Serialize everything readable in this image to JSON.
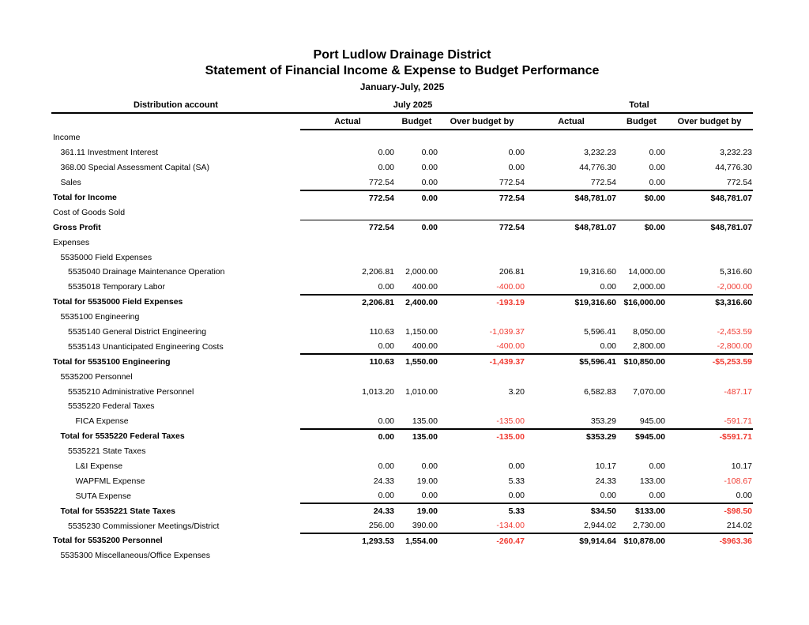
{
  "report": {
    "title": "Port Ludlow Drainage District",
    "subtitle": "Statement of Financial Income & Expense to Budget Performance",
    "period": "January-July, 2025",
    "account_column_header": "Distribution account",
    "column_groups": [
      {
        "label": "July 2025",
        "columns": [
          "Actual",
          "Budget",
          "Over budget by"
        ]
      },
      {
        "label": "Total",
        "columns": [
          "Actual",
          "Budget",
          "Over budget by"
        ]
      }
    ],
    "rows": [
      {
        "label": "Income",
        "indent": 0,
        "bold": false,
        "rule_top": false,
        "rule_bottom": false,
        "values": [
          "",
          "",
          "",
          "",
          "",
          ""
        ]
      },
      {
        "label": "361.11 Investment Interest",
        "indent": 1,
        "bold": false,
        "rule_top": false,
        "rule_bottom": false,
        "values": [
          "0.00",
          "0.00",
          "0.00",
          "3,232.23",
          "0.00",
          "3,232.23"
        ]
      },
      {
        "label": "368.00 Special Assessment Capital (SA)",
        "indent": 1,
        "bold": false,
        "rule_top": false,
        "rule_bottom": false,
        "values": [
          "0.00",
          "0.00",
          "0.00",
          "44,776.30",
          "0.00",
          "44,776.30"
        ]
      },
      {
        "label": "Sales",
        "indent": 1,
        "bold": false,
        "rule_top": false,
        "rule_bottom": true,
        "values": [
          "772.54",
          "0.00",
          "772.54",
          "772.54",
          "0.00",
          "772.54"
        ]
      },
      {
        "label": "Total for Income",
        "indent": 0,
        "bold": true,
        "rule_top": true,
        "rule_bottom": false,
        "values": [
          "772.54",
          "0.00",
          "772.54",
          "$48,781.07",
          "$0.00",
          "$48,781.07"
        ]
      },
      {
        "label": "Cost of Goods Sold",
        "indent": 0,
        "bold": false,
        "rule_top": false,
        "rule_bottom": false,
        "values": [
          "",
          "",
          "",
          "",
          "",
          ""
        ]
      },
      {
        "label": "Gross Profit",
        "indent": 0,
        "bold": true,
        "rule_top": true,
        "rule_bottom": false,
        "values": [
          "772.54",
          "0.00",
          "772.54",
          "$48,781.07",
          "$0.00",
          "$48,781.07"
        ]
      },
      {
        "label": "Expenses",
        "indent": 0,
        "bold": false,
        "rule_top": false,
        "rule_bottom": false,
        "values": [
          "",
          "",
          "",
          "",
          "",
          ""
        ]
      },
      {
        "label": "5535000 Field Expenses",
        "indent": 1,
        "bold": false,
        "rule_top": false,
        "rule_bottom": false,
        "values": [
          "",
          "",
          "",
          "",
          "",
          ""
        ]
      },
      {
        "label": "5535040 Drainage Maintenance Operation",
        "indent": 2,
        "bold": false,
        "rule_top": false,
        "rule_bottom": false,
        "values": [
          "2,206.81",
          "2,000.00",
          "206.81",
          "19,316.60",
          "14,000.00",
          "5,316.60"
        ]
      },
      {
        "label": "5535018 Temporary Labor",
        "indent": 2,
        "bold": false,
        "rule_top": false,
        "rule_bottom": true,
        "values": [
          "0.00",
          "400.00",
          "-400.00",
          "0.00",
          "2,000.00",
          "-2,000.00"
        ]
      },
      {
        "label": "Total for 5535000 Field Expenses",
        "indent": 0,
        "bold": true,
        "rule_top": true,
        "rule_bottom": false,
        "values": [
          "2,206.81",
          "2,400.00",
          "-193.19",
          "$19,316.60",
          "$16,000.00",
          "$3,316.60"
        ]
      },
      {
        "label": "5535100 Engineering",
        "indent": 1,
        "bold": false,
        "rule_top": false,
        "rule_bottom": false,
        "values": [
          "",
          "",
          "",
          "",
          "",
          ""
        ]
      },
      {
        "label": "5535140 General District Engineering",
        "indent": 2,
        "bold": false,
        "rule_top": false,
        "rule_bottom": false,
        "values": [
          "110.63",
          "1,150.00",
          "-1,039.37",
          "5,596.41",
          "8,050.00",
          "-2,453.59"
        ]
      },
      {
        "label": "5535143 Unanticipated Engineering Costs",
        "indent": 2,
        "bold": false,
        "rule_top": false,
        "rule_bottom": true,
        "values": [
          "0.00",
          "400.00",
          "-400.00",
          "0.00",
          "2,800.00",
          "-2,800.00"
        ]
      },
      {
        "label": "Total for 5535100 Engineering",
        "indent": 0,
        "bold": true,
        "rule_top": true,
        "rule_bottom": false,
        "values": [
          "110.63",
          "1,550.00",
          "-1,439.37",
          "$5,596.41",
          "$10,850.00",
          "-$5,253.59"
        ]
      },
      {
        "label": "5535200 Personnel",
        "indent": 1,
        "bold": false,
        "rule_top": false,
        "rule_bottom": false,
        "values": [
          "",
          "",
          "",
          "",
          "",
          ""
        ]
      },
      {
        "label": "5535210 Administrative Personnel",
        "indent": 2,
        "bold": false,
        "rule_top": false,
        "rule_bottom": false,
        "values": [
          "1,013.20",
          "1,010.00",
          "3.20",
          "6,582.83",
          "7,070.00",
          "-487.17"
        ]
      },
      {
        "label": "5535220 Federal Taxes",
        "indent": 2,
        "bold": false,
        "rule_top": false,
        "rule_bottom": false,
        "values": [
          "",
          "",
          "",
          "",
          "",
          ""
        ]
      },
      {
        "label": "FICA Expense",
        "indent": 3,
        "bold": false,
        "rule_top": false,
        "rule_bottom": true,
        "values": [
          "0.00",
          "135.00",
          "-135.00",
          "353.29",
          "945.00",
          "-591.71"
        ]
      },
      {
        "label": "Total for 5535220 Federal Taxes",
        "indent": 1,
        "bold": true,
        "rule_top": true,
        "rule_bottom": false,
        "values": [
          "0.00",
          "135.00",
          "-135.00",
          "$353.29",
          "$945.00",
          "-$591.71"
        ]
      },
      {
        "label": "5535221 State Taxes",
        "indent": 2,
        "bold": false,
        "rule_top": false,
        "rule_bottom": false,
        "values": [
          "",
          "",
          "",
          "",
          "",
          ""
        ]
      },
      {
        "label": "L&I Expense",
        "indent": 3,
        "bold": false,
        "rule_top": false,
        "rule_bottom": false,
        "values": [
          "0.00",
          "0.00",
          "0.00",
          "10.17",
          "0.00",
          "10.17"
        ]
      },
      {
        "label": "WAPFML Expense",
        "indent": 3,
        "bold": false,
        "rule_top": false,
        "rule_bottom": false,
        "values": [
          "24.33",
          "19.00",
          "5.33",
          "24.33",
          "133.00",
          "-108.67"
        ]
      },
      {
        "label": "SUTA Expense",
        "indent": 3,
        "bold": false,
        "rule_top": false,
        "rule_bottom": true,
        "values": [
          "0.00",
          "0.00",
          "0.00",
          "0.00",
          "0.00",
          "0.00"
        ]
      },
      {
        "label": "Total for 5535221 State Taxes",
        "indent": 1,
        "bold": true,
        "rule_top": true,
        "rule_bottom": false,
        "values": [
          "24.33",
          "19.00",
          "5.33",
          "$34.50",
          "$133.00",
          "-$98.50"
        ]
      },
      {
        "label": "5535230 Commissioner Meetings/District",
        "indent": 2,
        "bold": false,
        "rule_top": false,
        "rule_bottom": true,
        "values": [
          "256.00",
          "390.00",
          "-134.00",
          "2,944.02",
          "2,730.00",
          "214.02"
        ]
      },
      {
        "label": "Total for 5535200 Personnel",
        "indent": 0,
        "bold": true,
        "rule_top": true,
        "rule_bottom": false,
        "values": [
          "1,293.53",
          "1,554.00",
          "-260.47",
          "$9,914.64",
          "$10,878.00",
          "-$963.36"
        ]
      },
      {
        "label": "5535300 Miscellaneous/Office Expenses",
        "indent": 1,
        "bold": false,
        "rule_top": false,
        "rule_bottom": false,
        "values": [
          "",
          "",
          "",
          "",
          "",
          ""
        ]
      }
    ]
  },
  "colors": {
    "negative": "#f03b32",
    "text": "#000000",
    "rule": "#000000"
  }
}
